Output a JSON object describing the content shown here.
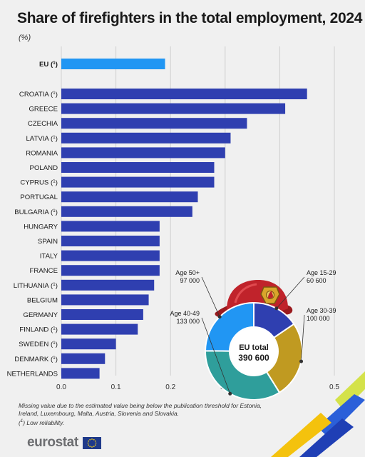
{
  "header": {
    "title": "Share of firefighters in the total employment, 2024",
    "unit": "(%)"
  },
  "chart_data": {
    "type": "bar",
    "orientation": "horizontal",
    "categories": [
      "EU",
      "CROATIA",
      "GREECE",
      "CZECHIA",
      "LATVIA",
      "ROMANIA",
      "POLAND",
      "CYPRUS",
      "PORTUGAL",
      "BULGARIA",
      "HUNGARY",
      "SPAIN",
      "ITALY",
      "FRANCE",
      "LITHUANIA",
      "BELGIUM",
      "GERMANY",
      "FINLAND",
      "SWEDEN",
      "DENMARK",
      "NETHERLANDS"
    ],
    "footnote_marks": [
      "1",
      "1",
      "",
      "",
      "1",
      "",
      "",
      "1",
      "",
      "1",
      "",
      "",
      "",
      "",
      "1",
      "",
      "",
      "1",
      "1",
      "1",
      ""
    ],
    "values": [
      0.19,
      0.45,
      0.41,
      0.34,
      0.31,
      0.3,
      0.28,
      0.28,
      0.25,
      0.24,
      0.18,
      0.18,
      0.18,
      0.18,
      0.17,
      0.16,
      0.15,
      0.14,
      0.1,
      0.08,
      0.07
    ],
    "xlim": [
      0,
      0.5
    ],
    "xticks": [
      "0.0",
      "0.1",
      "0.2",
      "0.3",
      "0.4",
      "0.5"
    ],
    "grid": "vertical",
    "colors": {
      "eu": "#2196f3",
      "countries": "#2f3fb0"
    }
  },
  "donut": {
    "center_title": "EU total",
    "center_value": "390 600",
    "segments": [
      {
        "label": "Age 15-29",
        "value": "60 600",
        "amount": 60600,
        "color": "#2f3fb0"
      },
      {
        "label": "Age 30-39",
        "value": "100 000",
        "amount": 100000,
        "color": "#c09a21"
      },
      {
        "label": "Age 40-49",
        "value": "133 000",
        "amount": 133000,
        "color": "#2f9e9b"
      },
      {
        "label": "Age 50+",
        "value": "97 000",
        "amount": 97000,
        "color": "#2196f3"
      }
    ]
  },
  "notes": {
    "missing": "Missing value due to the estimated value being below the publication threshold for Estonia, Ireland, Luxembourg, Malta, Austria, Slovenia and Slovakia.",
    "reliability_mark": "1",
    "reliability": " Low reliability."
  },
  "brand": {
    "name": "eurostat"
  },
  "icons": [
    "firefighter-helmet-icon",
    "eu-flag-icon"
  ]
}
